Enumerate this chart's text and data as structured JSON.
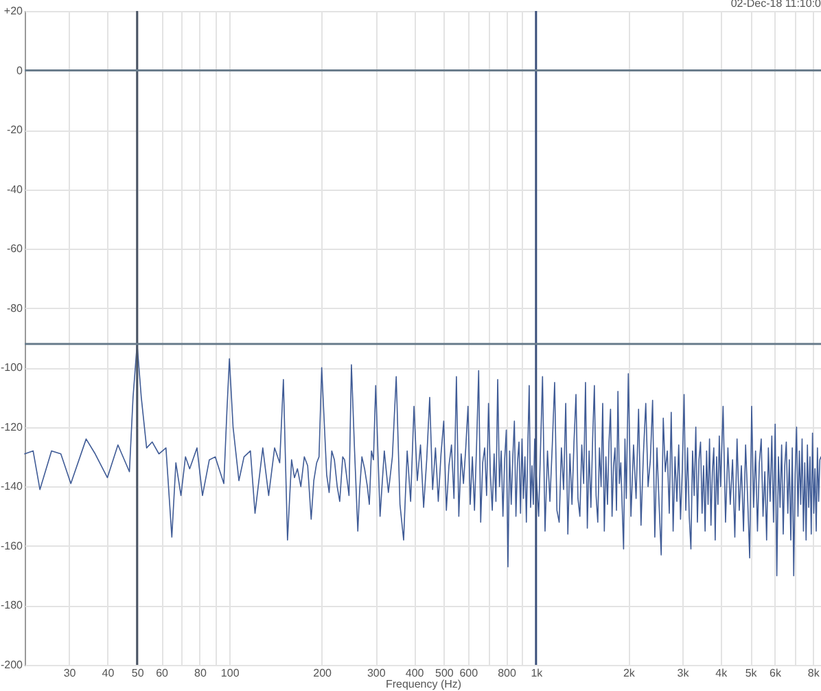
{
  "chart_data": {
    "type": "line",
    "xlabel": "Frequency (Hz)",
    "annotations": [
      "02-Dec-18 11:10:0"
    ],
    "x": [
      21.5,
      22.9,
      24.1,
      26.3,
      28.2,
      30.4,
      34.1,
      36.5,
      40,
      43.3,
      47.2,
      48.5,
      50,
      51.6,
      53.7,
      56,
      58.9,
      62.1,
      64.9,
      66.9,
      69.5,
      71.9,
      74.2,
      78.4,
      81.7,
      86,
      89.9,
      95.9,
      98.1,
      100,
      102.8,
      107.4,
      111.6,
      117.1,
      121.2,
      128.5,
      134.3,
      140.4,
      145.9,
      150,
      154.7,
      159.5,
      163,
      166.7,
      171,
      175.5,
      180,
      184.8,
      188.5,
      192.6,
      196,
      200,
      207.6,
      211.5,
      215.7,
      220,
      224.7,
      229,
      234.2,
      237.5,
      241.5,
      245.5,
      250,
      256,
      262.3,
      266,
      270.5,
      276,
      281.8,
      286,
      290.6,
      295,
      300,
      310,
      320,
      330,
      340,
      350,
      360,
      370,
      380,
      390,
      400,
      410,
      420,
      430,
      440,
      450,
      460,
      470,
      480,
      490,
      500,
      510,
      520,
      530,
      540,
      550,
      560,
      570,
      580,
      590,
      600,
      610,
      620,
      630,
      640,
      650,
      660,
      670,
      680,
      690,
      700,
      710,
      720,
      730,
      740,
      750,
      760,
      770,
      780,
      790,
      800,
      810,
      820,
      830,
      840,
      850,
      860,
      870,
      880,
      890,
      900,
      910,
      920,
      930,
      940,
      950,
      960,
      970,
      980,
      990,
      1000,
      1020,
      1050,
      1070,
      1090,
      1110,
      1130,
      1150,
      1170,
      1190,
      1210,
      1230,
      1250,
      1270,
      1290,
      1310,
      1330,
      1350,
      1370,
      1390,
      1410,
      1430,
      1450,
      1470,
      1490,
      1510,
      1530,
      1550,
      1570,
      1590,
      1610,
      1630,
      1650,
      1670,
      1690,
      1710,
      1730,
      1750,
      1770,
      1790,
      1810,
      1830,
      1850,
      1870,
      1890,
      1910,
      1930,
      1950,
      1970,
      2000,
      2040,
      2080,
      2120,
      2160,
      2200,
      2240,
      2280,
      2320,
      2360,
      2400,
      2440,
      2480,
      2520,
      2560,
      2600,
      2640,
      2680,
      2720,
      2760,
      2800,
      2840,
      2880,
      2920,
      2960,
      3000,
      3040,
      3080,
      3120,
      3160,
      3200,
      3240,
      3280,
      3320,
      3360,
      3400,
      3440,
      3480,
      3520,
      3560,
      3600,
      3640,
      3680,
      3720,
      3760,
      3800,
      3840,
      3880,
      3920,
      3960,
      4000,
      4075,
      4150,
      4225,
      4300,
      4375,
      4450,
      4525,
      4600,
      4675,
      4750,
      4825,
      4900,
      4975,
      5050,
      5125,
      5200,
      5275,
      5350,
      5425,
      5500,
      5575,
      5650,
      5725,
      5800,
      5875,
      5950,
      6025,
      6100,
      6175,
      6250,
      6325,
      6400,
      6475,
      6550,
      6625,
      6700,
      6775,
      6850,
      6925,
      7000,
      7075,
      7150,
      7225,
      7300,
      7375,
      7450,
      7525,
      7600,
      7675,
      7750,
      7825,
      7900,
      7975,
      8050,
      8125,
      8200,
      8275,
      8350,
      8425,
      8500
    ],
    "series": [
      {
        "color": "#3f5b96",
        "values": [
          -129,
          -128,
          -141,
          -128,
          -129,
          -139,
          -124,
          -129,
          -137,
          -126,
          -135,
          -110,
          -92,
          -110,
          -127,
          -125,
          -129,
          -127,
          -157,
          -132,
          -143,
          -130,
          -134,
          -127,
          -143,
          -131,
          -130,
          -139,
          -115,
          -97,
          -120,
          -138,
          -130,
          -128,
          -149,
          -127,
          -143,
          -127,
          -132,
          -104,
          -158,
          -131,
          -137,
          -134,
          -140,
          -130,
          -133,
          -151,
          -138,
          -132,
          -130,
          -100,
          -136,
          -142,
          -128,
          -131,
          -140,
          -145,
          -130,
          -131,
          -137,
          -143,
          -99,
          -128,
          -155,
          -141,
          -130,
          -134,
          -140,
          -146,
          -128,
          -131,
          -106,
          -150,
          -128,
          -142,
          -130,
          -103,
          -146,
          -158,
          -128,
          -145,
          -113,
          -138,
          -126,
          -147,
          -131,
          -110,
          -141,
          -127,
          -145,
          -129,
          -118,
          -148,
          -133,
          -126,
          -144,
          -103,
          -150,
          -129,
          -139,
          -127,
          -113,
          -146,
          -130,
          -148,
          -126,
          -101,
          -152,
          -132,
          -127,
          -143,
          -112,
          -136,
          -148,
          -129,
          -145,
          -104,
          -140,
          -128,
          -150,
          -131,
          -121,
          -167,
          -128,
          -146,
          -130,
          -118,
          -150,
          -132,
          -125,
          -149,
          -124,
          -144,
          -130,
          -152,
          -127,
          -106,
          -147,
          -133,
          -146,
          -124,
          -135,
          -150,
          -103,
          -155,
          -128,
          -145,
          -126,
          -105,
          -148,
          -152,
          -127,
          -141,
          -112,
          -156,
          -129,
          -146,
          -125,
          -109,
          -144,
          -150,
          -126,
          -139,
          -105,
          -154,
          -128,
          -147,
          -124,
          -106,
          -143,
          -152,
          -127,
          -140,
          -112,
          -155,
          -130,
          -146,
          -125,
          -114,
          -150,
          -133,
          -127,
          -148,
          -108,
          -139,
          -132,
          -147,
          -161,
          -124,
          -144,
          -102,
          -150,
          -126,
          -144,
          -114,
          -153,
          -129,
          -112,
          -140,
          -131,
          -111,
          -157,
          -127,
          -146,
          -163,
          -117,
          -135,
          -128,
          -149,
          -115,
          -155,
          -130,
          -145,
          -126,
          -151,
          -134,
          -109,
          -148,
          -127,
          -150,
          -161,
          -128,
          -143,
          -120,
          -152,
          -131,
          -125,
          -149,
          -133,
          -155,
          -128,
          -146,
          -124,
          -153,
          -135,
          -127,
          -158,
          -130,
          -146,
          -123,
          -140,
          -113,
          -152,
          -127,
          -146,
          -131,
          -157,
          -124,
          -148,
          -133,
          -155,
          -126,
          -144,
          -164,
          -113,
          -147,
          -128,
          -155,
          -132,
          -124,
          -150,
          -135,
          -158,
          -127,
          -145,
          -123,
          -152,
          -119,
          -170,
          -130,
          -147,
          -126,
          -156,
          -133,
          -125,
          -149,
          -131,
          -158,
          -127,
          -170,
          -136,
          -120,
          -150,
          -128,
          -146,
          -124,
          -155,
          -132,
          -158,
          -126,
          -147,
          -130,
          -156,
          -122,
          -149,
          -134,
          -155,
          -127,
          -145,
          -131,
          -130
        ]
      }
    ],
    "xlim": [
      21.5,
      8500
    ],
    "ylim": [
      -200,
      20
    ],
    "xticks": [
      30,
      40,
      50,
      60,
      {
        "value": 70,
        "label": null
      },
      80,
      {
        "value": 90,
        "label": null
      },
      100,
      200,
      300,
      400,
      500,
      600,
      {
        "value": 700,
        "label": null
      },
      800,
      {
        "value": 900,
        "label": null
      },
      {
        "value": 1000,
        "label": "1k"
      },
      {
        "value": 2000,
        "label": "2k"
      },
      {
        "value": 3000,
        "label": "3k"
      },
      {
        "value": 4000,
        "label": "4k"
      },
      {
        "value": 5000,
        "label": "5k"
      },
      {
        "value": 6000,
        "label": "6k"
      },
      {
        "value": 7000,
        "label": null
      },
      {
        "value": 8000,
        "label": "8k"
      }
    ],
    "yticks": [
      {
        "value": 20,
        "label": "+20"
      },
      0,
      -20,
      -40,
      -60,
      -80,
      -100,
      -120,
      -140,
      -160,
      -180,
      -200
    ],
    "log": "x",
    "grid": true,
    "ref_lines": [
      {
        "axis": "x",
        "value": 50,
        "color": "#4a5464"
      },
      {
        "axis": "x",
        "value": 1000,
        "color": "#3a4f7a"
      },
      {
        "axis": "y",
        "value": 0,
        "color": "#6a7d8c"
      },
      {
        "axis": "y",
        "value": -92,
        "color": "#6a7d8c"
      }
    ]
  }
}
